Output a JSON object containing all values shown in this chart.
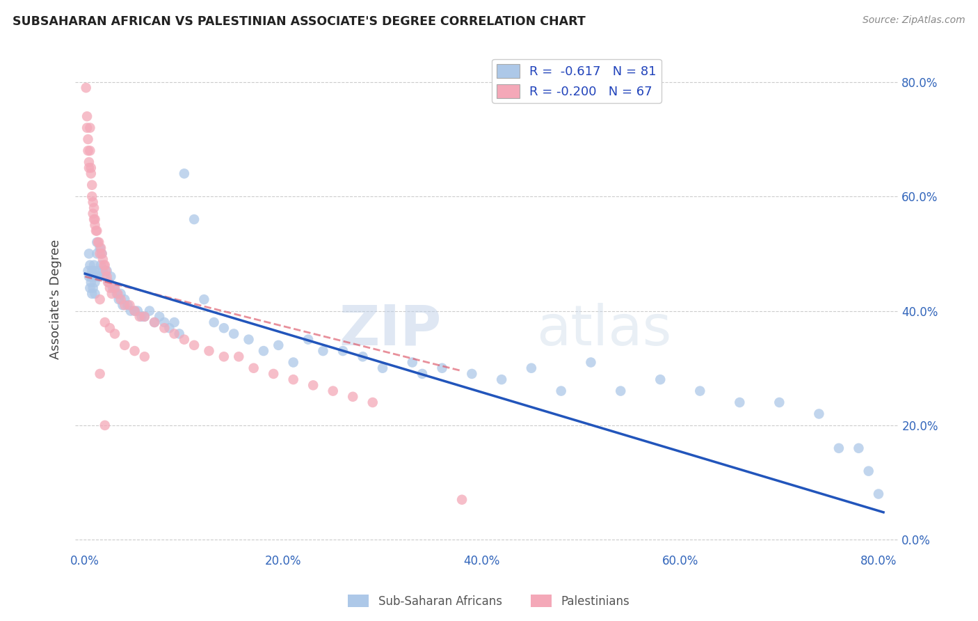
{
  "title": "SUBSAHARAN AFRICAN VS PALESTINIAN ASSOCIATE'S DEGREE CORRELATION CHART",
  "source": "Source: ZipAtlas.com",
  "ylabel": "Associate's Degree",
  "blue_R": -0.617,
  "blue_N": 81,
  "pink_R": -0.2,
  "pink_N": 67,
  "blue_color": "#adc8e8",
  "pink_color": "#f4a8b8",
  "blue_line_color": "#2255bb",
  "pink_line_color": "#dd5566",
  "watermark_zip": "ZIP",
  "watermark_atlas": "atlas",
  "legend_label_blue": "Sub-Saharan Africans",
  "legend_label_pink": "Palestinians",
  "blue_x": [
    0.003,
    0.004,
    0.004,
    0.005,
    0.005,
    0.006,
    0.006,
    0.007,
    0.007,
    0.008,
    0.008,
    0.009,
    0.009,
    0.01,
    0.01,
    0.011,
    0.012,
    0.012,
    0.013,
    0.014,
    0.015,
    0.016,
    0.017,
    0.018,
    0.02,
    0.022,
    0.024,
    0.026,
    0.028,
    0.03,
    0.032,
    0.034,
    0.036,
    0.038,
    0.04,
    0.043,
    0.046,
    0.05,
    0.053,
    0.057,
    0.06,
    0.065,
    0.07,
    0.075,
    0.08,
    0.085,
    0.09,
    0.095,
    0.1,
    0.11,
    0.12,
    0.13,
    0.14,
    0.15,
    0.165,
    0.18,
    0.195,
    0.21,
    0.225,
    0.24,
    0.26,
    0.28,
    0.3,
    0.33,
    0.36,
    0.39,
    0.42,
    0.45,
    0.48,
    0.51,
    0.54,
    0.58,
    0.62,
    0.66,
    0.7,
    0.74,
    0.76,
    0.78,
    0.79,
    0.8,
    0.34
  ],
  "blue_y": [
    0.47,
    0.46,
    0.5,
    0.44,
    0.48,
    0.45,
    0.46,
    0.47,
    0.43,
    0.46,
    0.44,
    0.47,
    0.48,
    0.45,
    0.43,
    0.46,
    0.5,
    0.52,
    0.47,
    0.46,
    0.51,
    0.48,
    0.5,
    0.47,
    0.46,
    0.47,
    0.45,
    0.46,
    0.44,
    0.44,
    0.43,
    0.42,
    0.43,
    0.41,
    0.42,
    0.41,
    0.4,
    0.4,
    0.4,
    0.39,
    0.39,
    0.4,
    0.38,
    0.39,
    0.38,
    0.37,
    0.38,
    0.36,
    0.64,
    0.56,
    0.42,
    0.38,
    0.37,
    0.36,
    0.35,
    0.33,
    0.34,
    0.31,
    0.35,
    0.33,
    0.33,
    0.32,
    0.3,
    0.31,
    0.3,
    0.29,
    0.28,
    0.3,
    0.26,
    0.31,
    0.26,
    0.28,
    0.26,
    0.24,
    0.24,
    0.22,
    0.16,
    0.16,
    0.12,
    0.08,
    0.29
  ],
  "pink_x": [
    0.001,
    0.002,
    0.002,
    0.003,
    0.003,
    0.004,
    0.004,
    0.005,
    0.005,
    0.006,
    0.006,
    0.007,
    0.007,
    0.008,
    0.008,
    0.009,
    0.009,
    0.01,
    0.01,
    0.011,
    0.012,
    0.013,
    0.014,
    0.015,
    0.016,
    0.017,
    0.018,
    0.019,
    0.02,
    0.021,
    0.022,
    0.023,
    0.025,
    0.027,
    0.03,
    0.033,
    0.036,
    0.04,
    0.045,
    0.05,
    0.055,
    0.06,
    0.07,
    0.08,
    0.09,
    0.1,
    0.11,
    0.125,
    0.14,
    0.155,
    0.17,
    0.19,
    0.21,
    0.23,
    0.25,
    0.27,
    0.29,
    0.015,
    0.02,
    0.025,
    0.03,
    0.04,
    0.05,
    0.06,
    0.015,
    0.02,
    0.38
  ],
  "pink_y": [
    0.79,
    0.74,
    0.72,
    0.7,
    0.68,
    0.66,
    0.65,
    0.72,
    0.68,
    0.65,
    0.64,
    0.62,
    0.6,
    0.59,
    0.57,
    0.56,
    0.58,
    0.56,
    0.55,
    0.54,
    0.54,
    0.52,
    0.52,
    0.5,
    0.51,
    0.5,
    0.49,
    0.48,
    0.48,
    0.47,
    0.46,
    0.45,
    0.44,
    0.43,
    0.44,
    0.43,
    0.42,
    0.41,
    0.41,
    0.4,
    0.39,
    0.39,
    0.38,
    0.37,
    0.36,
    0.35,
    0.34,
    0.33,
    0.32,
    0.32,
    0.3,
    0.29,
    0.28,
    0.27,
    0.26,
    0.25,
    0.24,
    0.42,
    0.38,
    0.37,
    0.36,
    0.34,
    0.33,
    0.32,
    0.29,
    0.2,
    0.07
  ]
}
